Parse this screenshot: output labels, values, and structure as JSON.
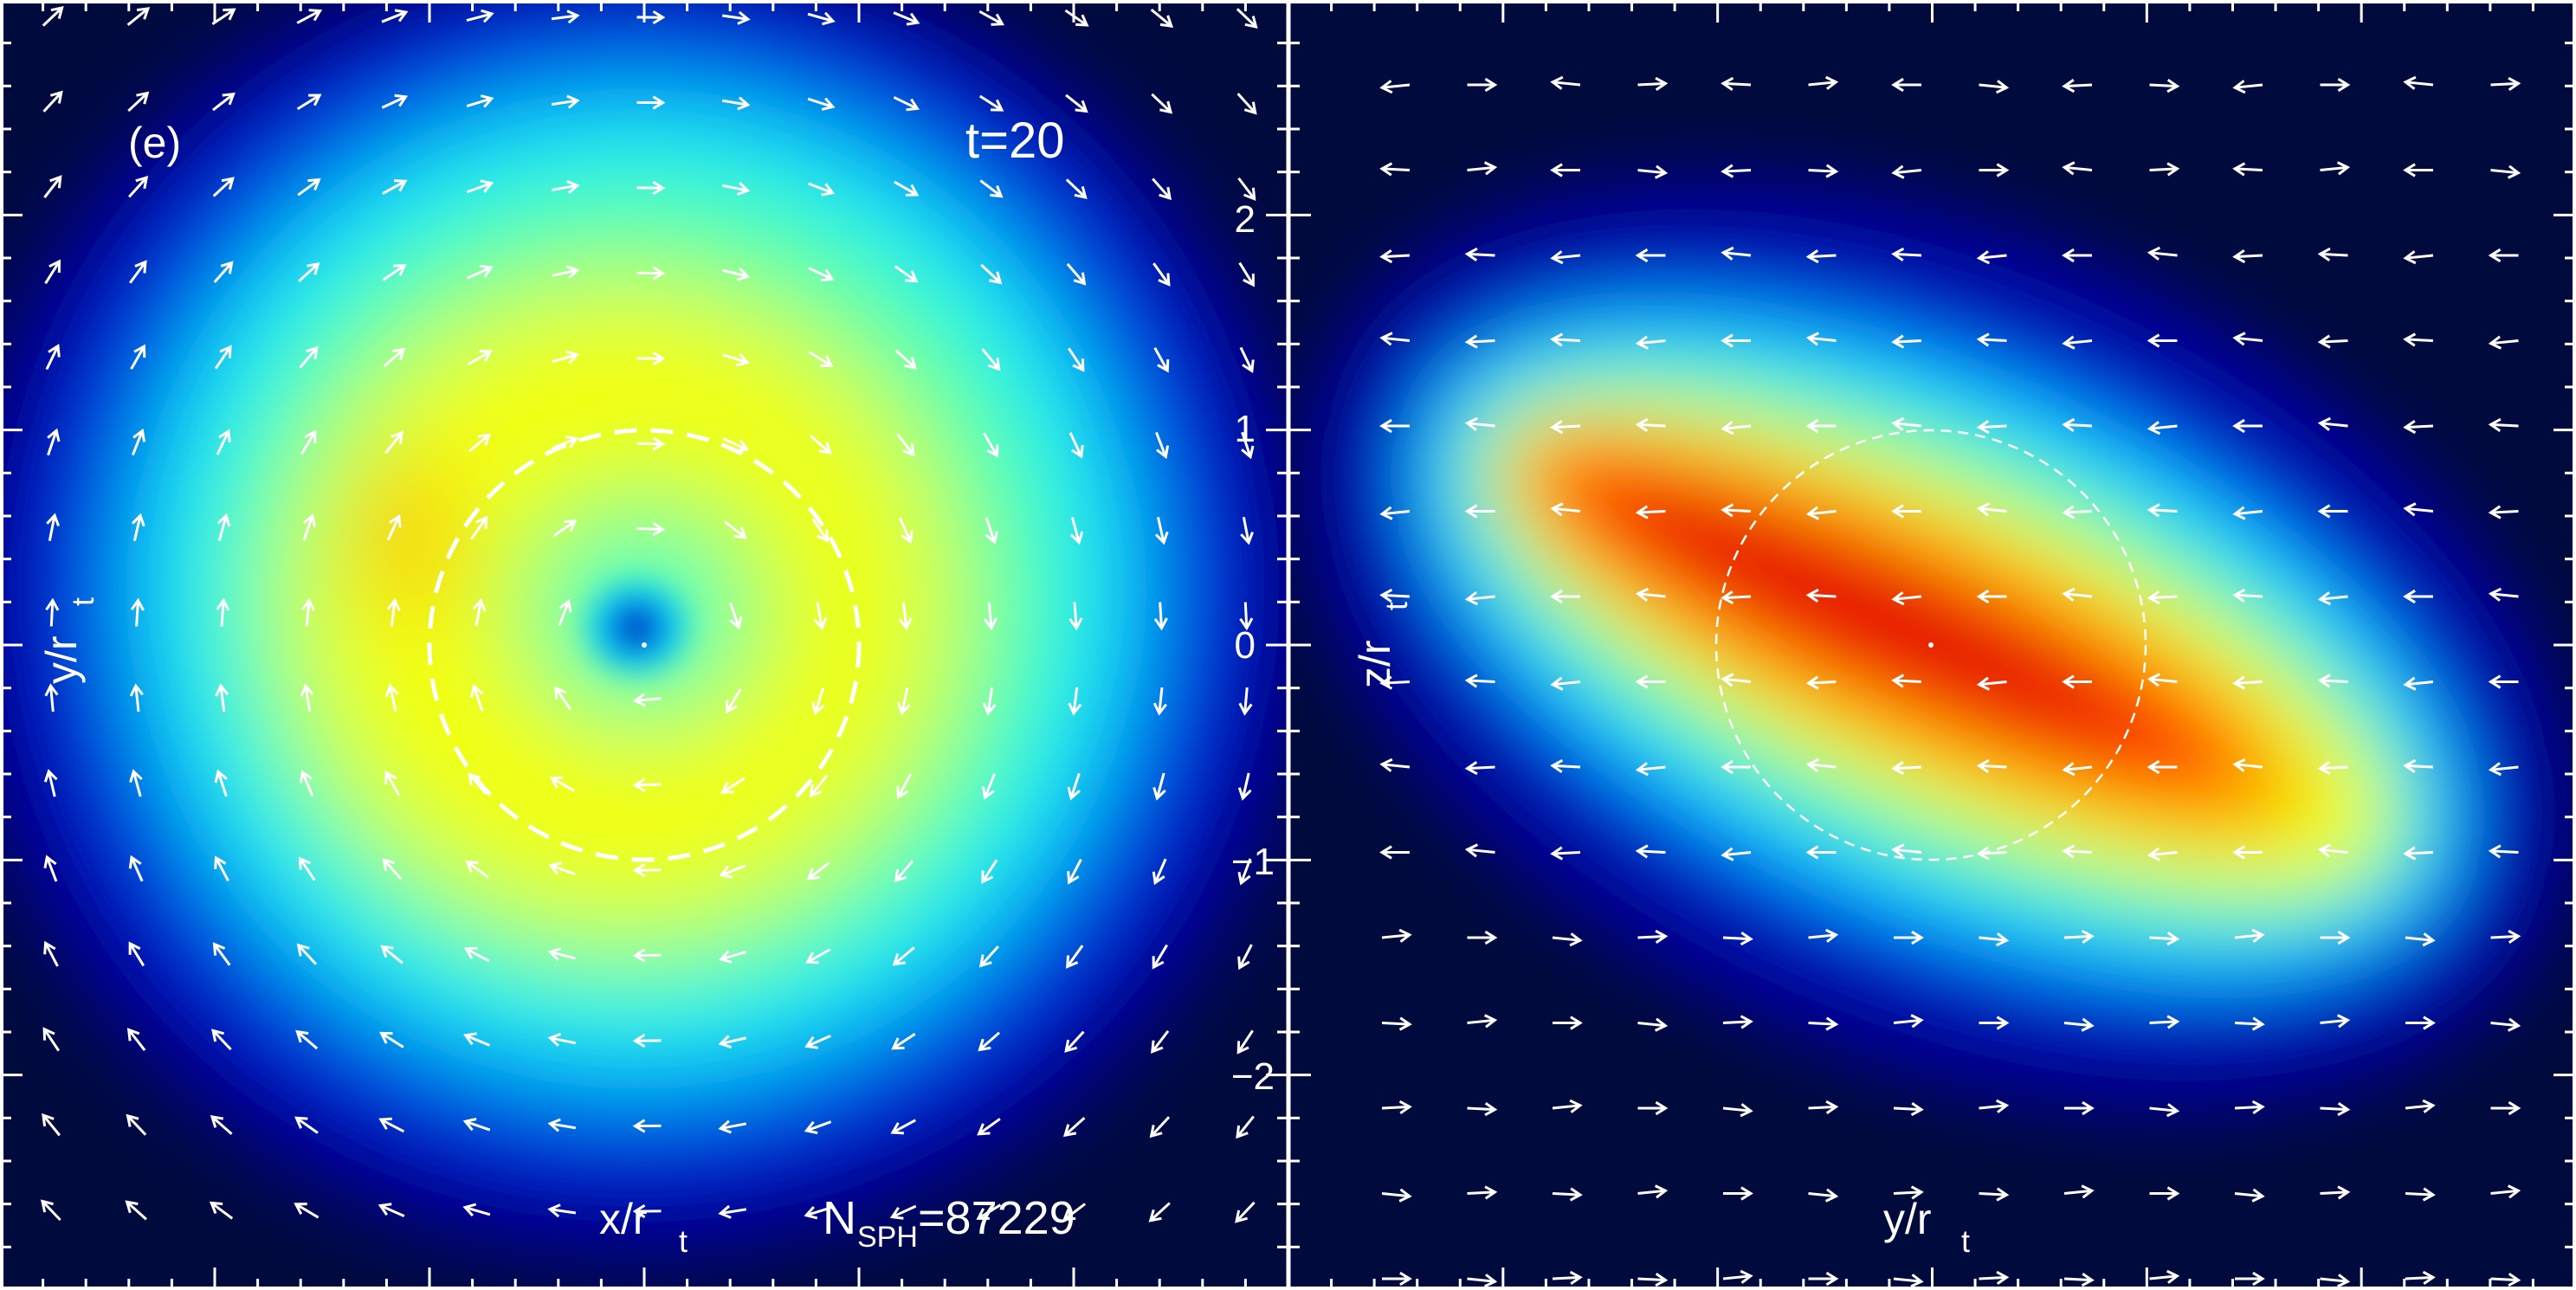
{
  "panels": {
    "left": {
      "panel_label": "(e)",
      "time_label": "t=20",
      "xlabel": "x/r",
      "xlabel_sub": "t",
      "ylabel": "y/r",
      "ylabel_sub": "t",
      "nsph_prefix": "N",
      "nsph_sub": "SPH",
      "nsph_value": "=87229"
    },
    "right": {
      "xlabel": "y/r",
      "xlabel_sub": "t",
      "ylabel": "z/r",
      "ylabel_sub": "t",
      "yticks": [
        "2",
        "1",
        "0",
        "−1",
        "−2"
      ]
    }
  },
  "chart_data": [
    {
      "type": "heatmap",
      "title": "",
      "xlabel": "x/r_t",
      "ylabel": "y/r_t",
      "xlim": [
        -3,
        3
      ],
      "ylim": [
        -3,
        3
      ],
      "annotations": [
        "(e)",
        "t=20",
        "N_SPH=87229"
      ],
      "colormap": "jet",
      "overlay": [
        "velocity arrows",
        "dashed circle r=1"
      ],
      "features": [
        {
          "name": "disk",
          "center": [
            0.0,
            0.05
          ],
          "radius": 2.6
        },
        {
          "name": "central hole",
          "center": [
            0.0,
            0.0
          ],
          "radius": 0.12
        }
      ]
    },
    {
      "type": "heatmap",
      "title": "",
      "xlabel": "y/r_t",
      "ylabel": "z/r_t",
      "xlim": [
        -3,
        3
      ],
      "ylim": [
        -3,
        3
      ],
      "yticks": [
        -2,
        -1,
        0,
        1,
        2
      ],
      "colormap": "jet",
      "overlay": [
        "velocity arrows",
        "dashed circle r=1"
      ],
      "features": [
        {
          "name": "tilted dense disk",
          "center": [
            0.0,
            0.0
          ],
          "orientation": "upper-left to lower-right"
        }
      ]
    }
  ]
}
